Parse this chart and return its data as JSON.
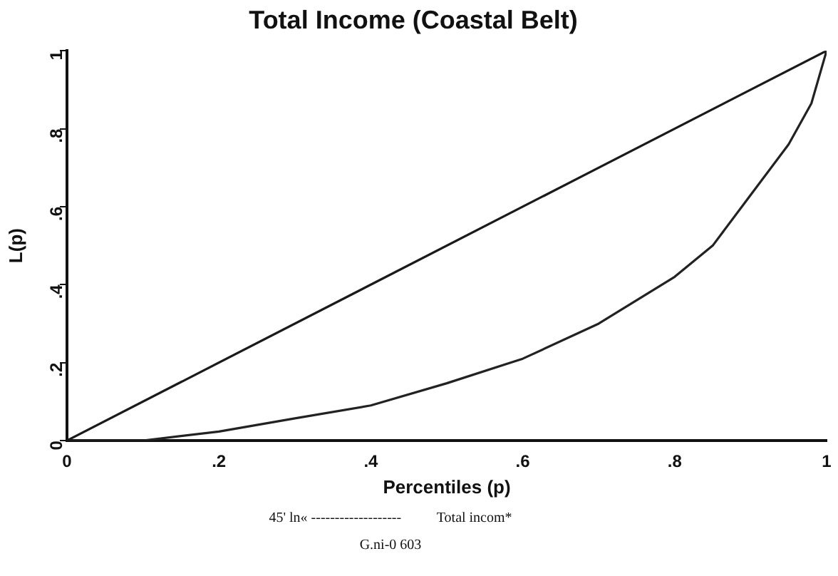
{
  "chart_data": {
    "type": "line",
    "title": "Total Income (Coastal Belt)",
    "xlabel": "Percentiles (p)",
    "ylabel": "L(p)",
    "xlim": [
      0,
      1
    ],
    "ylim": [
      0,
      1
    ],
    "xticks": [
      0,
      {
        "value": 0.2,
        "label": ".2"
      },
      {
        "value": 0.4,
        "label": ".4"
      },
      {
        "value": 0.6,
        "label": ".6"
      },
      {
        "value": 0.8,
        "label": ".8"
      },
      1
    ],
    "yticks": [
      0,
      {
        "value": 0.2,
        "label": ".2"
      },
      {
        "value": 0.4,
        "label": ".4"
      },
      {
        "value": 0.6,
        "label": ".6"
      },
      {
        "value": 0.8,
        "label": ".8"
      },
      1
    ],
    "series": [
      {
        "color": "#1a1a1a",
        "x": [
          0,
          1
        ],
        "values": [
          0,
          1
        ]
      },
      {
        "color": "#222222",
        "x": [
          0,
          0.1,
          0.2,
          0.3,
          0.4,
          0.5,
          0.6,
          0.7,
          0.8,
          0.85,
          0.9,
          0.95,
          0.98,
          1
        ],
        "values": [
          0,
          0,
          0.023,
          0.057,
          0.09,
          0.147,
          0.21,
          0.3,
          0.42,
          0.5,
          0.63,
          0.76,
          0.865,
          1
        ]
      }
    ],
    "annotations": [
      "45' ln« -------------------          Total incom*",
      "G.ni-0 603"
    ],
    "grid": false,
    "legend": false,
    "marker": "none"
  }
}
